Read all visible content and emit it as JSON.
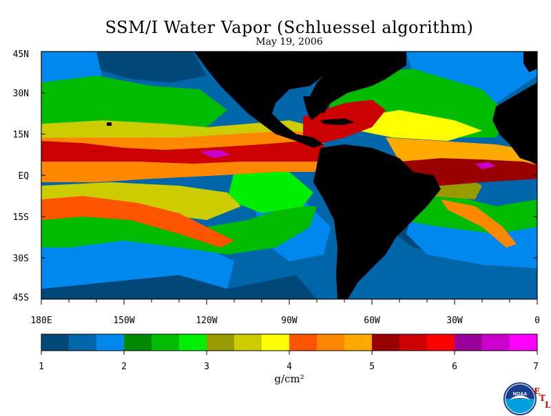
{
  "title": "SSM/I Water Vapor (Schluessel algorithm)",
  "date": "May 19, 2006",
  "map": {
    "lat_ticks": [
      "45N",
      "30N",
      "15N",
      "EQ",
      "15S",
      "30S",
      "45S"
    ],
    "lon_ticks": [
      "180E",
      "150W",
      "120W",
      "90W",
      "60W",
      "30W",
      "0"
    ],
    "land_color": "#000000",
    "ocean_background": "#0066aa"
  },
  "colorbar": {
    "unit": "g/cm²",
    "ticks": [
      "1",
      "2",
      "3",
      "4",
      "5",
      "6",
      "7"
    ],
    "colors": [
      "#004878",
      "#0066aa",
      "#0088ee",
      "#008800",
      "#00bb00",
      "#00ee00",
      "#999900",
      "#cccc00",
      "#ffff00",
      "#ff5500",
      "#ff8800",
      "#ffaa00",
      "#990000",
      "#cc0000",
      "#ff0000",
      "#990099",
      "#cc00cc",
      "#ff00ff"
    ]
  },
  "logo": {
    "text": "NOAA",
    "etl_letters": [
      "E",
      "T",
      "L"
    ]
  }
}
